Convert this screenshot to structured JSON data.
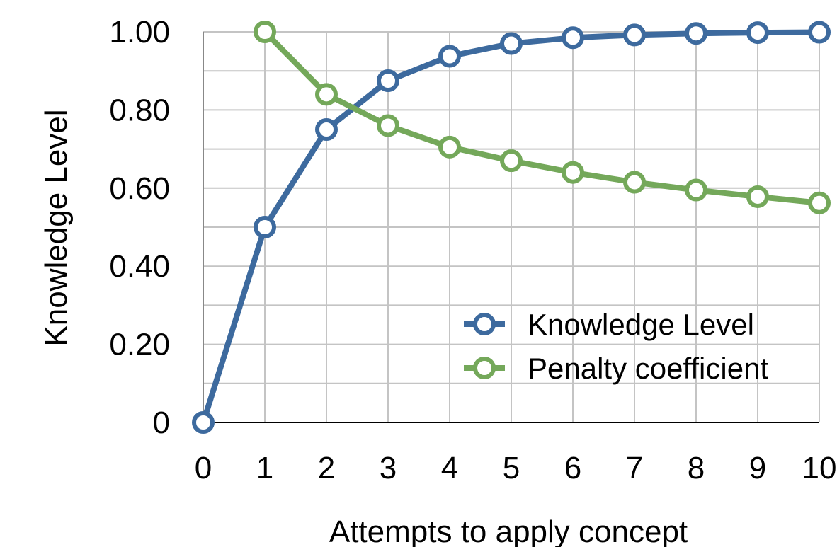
{
  "chart_data": {
    "type": "line",
    "xlabel": "Attempts to apply concept",
    "ylabel": "Knowledge Level",
    "x": [
      0,
      1,
      2,
      3,
      4,
      5,
      6,
      7,
      8,
      9,
      10
    ],
    "x_tick_labels": [
      "0",
      "1",
      "2",
      "3",
      "4",
      "5",
      "6",
      "7",
      "8",
      "9",
      "10"
    ],
    "xlim": [
      0,
      10
    ],
    "ylim": [
      0,
      1.0
    ],
    "y_ticks": [
      0,
      0.2,
      0.4,
      0.6,
      0.8,
      1.0
    ],
    "y_tick_labels": [
      "0",
      "0.20",
      "0.40",
      "0.60",
      "0.80",
      "1.00"
    ],
    "grid": true,
    "legend_position": "bottom-right",
    "series": [
      {
        "name": "Knowledge Level",
        "color": "#3d6a9e",
        "x": [
          0,
          1,
          2,
          3,
          4,
          5,
          6,
          7,
          8,
          9,
          10
        ],
        "values": [
          0,
          0.5,
          0.75,
          0.875,
          0.9375,
          0.97,
          0.985,
          0.992,
          0.996,
          0.998,
          0.999
        ]
      },
      {
        "name": "Penalty coefficient",
        "color": "#74a85a",
        "x": [
          1,
          2,
          3,
          4,
          5,
          6,
          7,
          8,
          9,
          10
        ],
        "values": [
          1.0,
          0.84,
          0.76,
          0.705,
          0.67,
          0.64,
          0.615,
          0.595,
          0.578,
          0.562
        ]
      }
    ]
  }
}
